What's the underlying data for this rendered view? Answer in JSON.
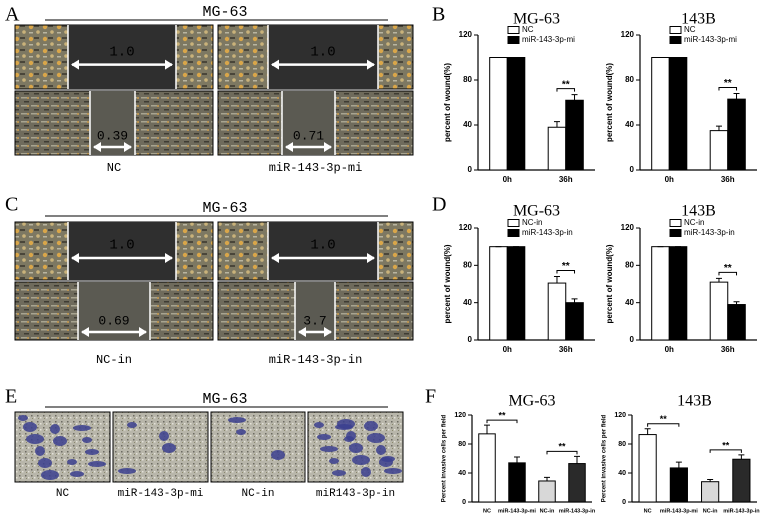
{
  "panel_labels": [
    "A",
    "B",
    "C",
    "D",
    "E",
    "F"
  ],
  "image_panels": [
    {
      "title": "MG-63",
      "captions": [
        "NC",
        "miR-143-3p-mi"
      ],
      "measurements": [
        "1.0",
        "0.39",
        "1.0",
        "0.71"
      ]
    },
    {
      "title": "MG-63",
      "captions": [
        "NC-in",
        "miR-143-3p-in"
      ],
      "measurements": [
        "1.0",
        "0.69",
        "1.0",
        "3.7"
      ]
    },
    {
      "title": "MG-63",
      "captions": [
        "NC",
        "miR-143-3p-mi",
        "NC-in",
        "miR143-3p-in"
      ]
    }
  ],
  "chart_data": [
    {
      "type": "bar",
      "title": "MG-63",
      "ylabel": "percent of wound(%)",
      "categories": [
        "0h",
        "36h"
      ],
      "series": [
        {
          "name": "NC",
          "color": "#ffffff",
          "values": [
            100,
            38
          ],
          "errors": [
            0,
            5
          ]
        },
        {
          "name": "miR-143-3p-mi",
          "color": "#000000",
          "values": [
            100,
            62
          ],
          "errors": [
            0,
            5
          ]
        }
      ],
      "ylim": [
        0,
        120
      ],
      "yticks": [
        0,
        40,
        80,
        120
      ],
      "significance": [
        "**"
      ]
    },
    {
      "type": "bar",
      "title": "143B",
      "ylabel": "percent of wound(%)",
      "categories": [
        "0h",
        "36h"
      ],
      "series": [
        {
          "name": "NC",
          "color": "#ffffff",
          "values": [
            100,
            35
          ],
          "errors": [
            0,
            4
          ]
        },
        {
          "name": "miR-143-3p-mi",
          "color": "#000000",
          "values": [
            100,
            63
          ],
          "errors": [
            0,
            5
          ]
        }
      ],
      "ylim": [
        0,
        120
      ],
      "yticks": [
        0,
        40,
        80,
        120
      ],
      "significance": [
        "**"
      ]
    },
    {
      "type": "bar",
      "title": "MG-63",
      "ylabel": "percent of wound(%)",
      "categories": [
        "0h",
        "36h"
      ],
      "series": [
        {
          "name": "NC-in",
          "color": "#ffffff",
          "values": [
            100,
            61
          ],
          "errors": [
            0,
            7
          ]
        },
        {
          "name": "miR-143-3p-in",
          "color": "#000000",
          "values": [
            100,
            40
          ],
          "errors": [
            0,
            4
          ]
        }
      ],
      "ylim": [
        0,
        120
      ],
      "yticks": [
        0,
        40,
        80,
        120
      ],
      "significance": [
        "**"
      ]
    },
    {
      "type": "bar",
      "title": "143B",
      "ylabel": "percent of wound(%)",
      "categories": [
        "0h",
        "36h"
      ],
      "series": [
        {
          "name": "NC-in",
          "color": "#ffffff",
          "values": [
            100,
            62
          ],
          "errors": [
            0,
            4
          ]
        },
        {
          "name": "miR-143-3p-in",
          "color": "#000000",
          "values": [
            100,
            38
          ],
          "errors": [
            0,
            3
          ]
        }
      ],
      "ylim": [
        0,
        120
      ],
      "yticks": [
        0,
        40,
        80,
        120
      ],
      "significance": [
        "**"
      ]
    },
    {
      "type": "bar",
      "title": "MG-63",
      "ylabel": "Percent invasive cells per field",
      "categories": [
        "NC",
        "miR-143-3p-mi",
        "NC-in",
        "miR-143-3p-in"
      ],
      "values": [
        94,
        54,
        29,
        53
      ],
      "errors": [
        12,
        8,
        5,
        10
      ],
      "colors": [
        "#ffffff",
        "#000000",
        "#d8d8d8",
        "#2a2a2a"
      ],
      "ylim": [
        0,
        120
      ],
      "yticks": [
        0,
        40,
        80,
        120
      ],
      "significance": [
        "**",
        "**"
      ]
    },
    {
      "type": "bar",
      "title": "143B",
      "ylabel": "Percent invasive cells per field",
      "categories": [
        "NC",
        "miR-143-3p-mi",
        "NC-in",
        "miR-143-3p-in"
      ],
      "values": [
        93,
        47,
        28,
        59
      ],
      "errors": [
        8,
        8,
        3,
        6
      ],
      "colors": [
        "#ffffff",
        "#000000",
        "#d8d8d8",
        "#2a2a2a"
      ],
      "ylim": [
        0,
        120
      ],
      "yticks": [
        0,
        40,
        80,
        120
      ],
      "significance": [
        "**",
        "**"
      ]
    }
  ]
}
